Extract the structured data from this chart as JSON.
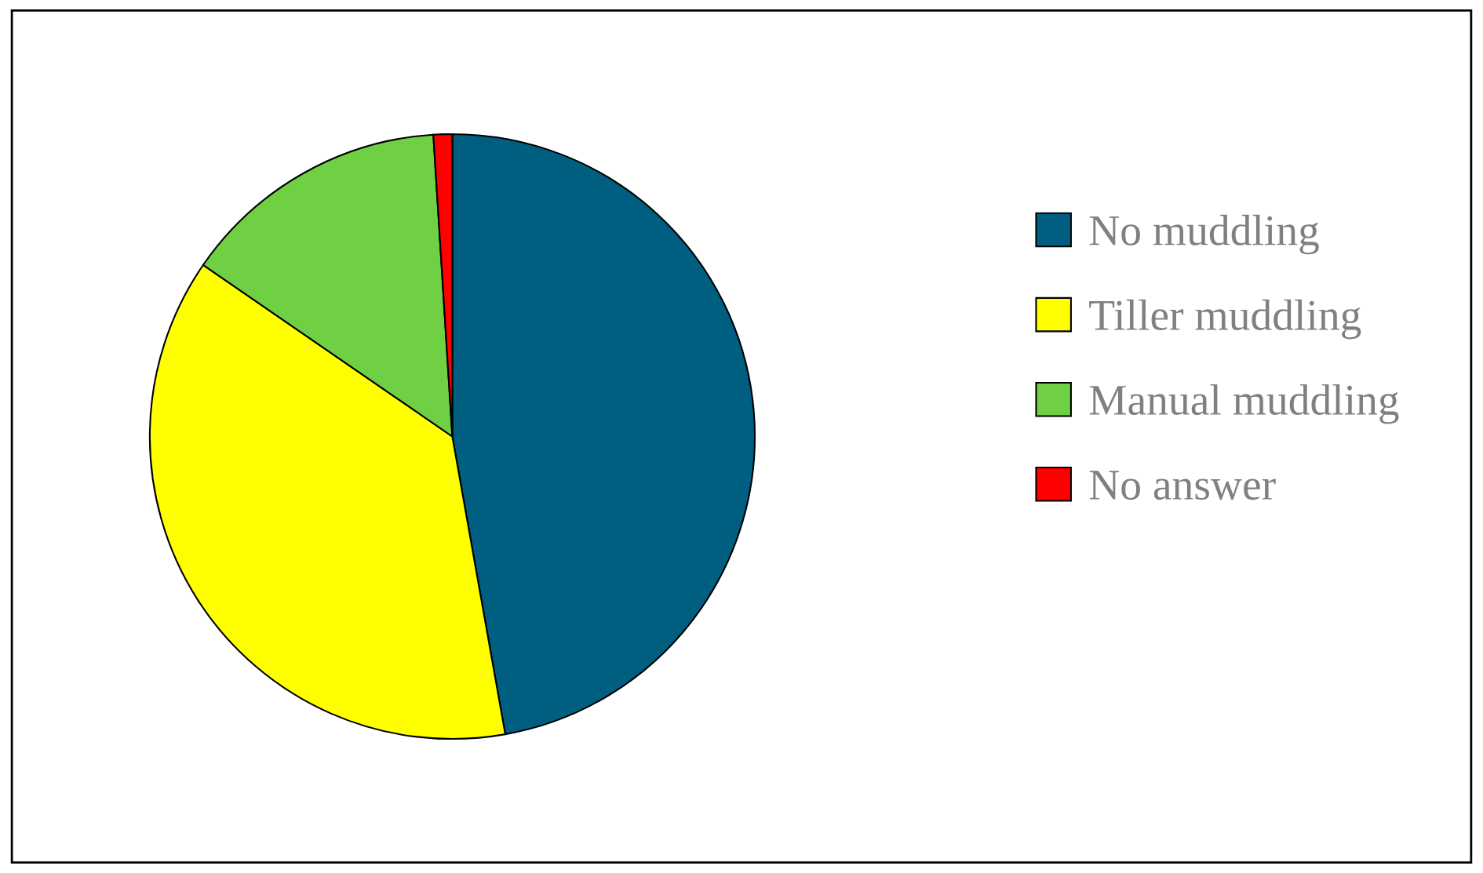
{
  "chart_data": {
    "type": "pie",
    "categories": [
      "No muddling",
      "Tiller muddling",
      "Manual muddling",
      "No answer"
    ],
    "values": [
      47.2,
      37.4,
      14.4,
      1.0
    ],
    "colors": [
      "#005f80",
      "#ffff00",
      "#70d044",
      "#ff0000"
    ],
    "legend": "right"
  }
}
